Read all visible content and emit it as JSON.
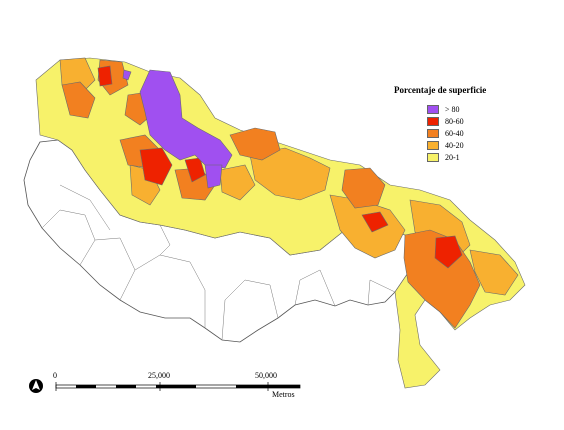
{
  "legend": {
    "title": "Porcentaje de superficie",
    "classes": [
      {
        "label": "> 80",
        "color": "#a050f0"
      },
      {
        "label": "80-60",
        "color": "#ee2200"
      },
      {
        "label": "60-40",
        "color": "#f28020"
      },
      {
        "label": "40-20",
        "color": "#f8b030"
      },
      {
        "label": "20-1",
        "color": "#f7f26a"
      }
    ]
  },
  "scale_bar": {
    "ticks": [
      "0",
      "25,000",
      "50,000"
    ],
    "unit": "Metros"
  },
  "north_arrow": {
    "icon": "north-arrow-icon"
  }
}
